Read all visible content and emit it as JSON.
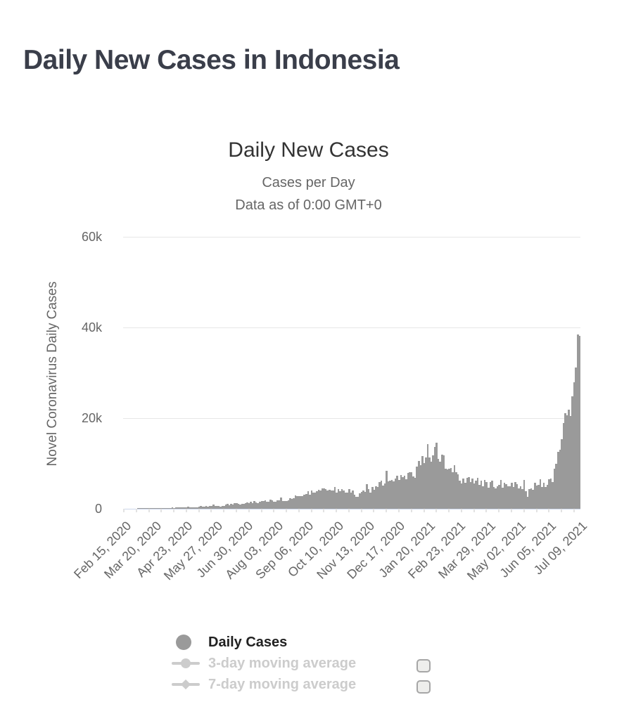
{
  "page": {
    "title": "Daily New Cases in Indonesia"
  },
  "chart": {
    "colors": {
      "bar": "#9a9a9a",
      "gridline": "#e7e7e7",
      "x_axis_line": "#ccd6eb",
      "title_text": "#3a3e4a",
      "axis_text": "#666666",
      "legend_active_text": "#212121",
      "legend_disabled": "#cccccc"
    }
  },
  "chart_data": {
    "type": "bar",
    "title": "Daily New Cases",
    "subtitle": "Cases per Day",
    "note": "Data as of 0:00 GMT+0",
    "ylabel": "Novel Coronavirus Daily Cases",
    "xlabel": "",
    "series_name": "Daily Cases",
    "ylim": [
      0,
      60000
    ],
    "y_ticks": [
      "0",
      "20k",
      "40k",
      "60k"
    ],
    "y_tick_values": [
      0,
      20000,
      40000,
      60000
    ],
    "grid": true,
    "legend_position": "bottom",
    "sample_interval_days": 2,
    "x_tick_labels": [
      "Feb 15, 2020",
      "Mar 20, 2020",
      "Apr 23, 2020",
      "May 27, 2020",
      "Jun 30, 2020",
      "Aug 03, 2020",
      "Sep 06, 2020",
      "Oct 10, 2020",
      "Nov 13, 2020",
      "Dec 17, 2020",
      "Jan 20, 2021",
      "Feb 23, 2021",
      "Mar 29, 2021",
      "May 02, 2021",
      "Jun 05, 2021",
      "Jul 09, 2021"
    ],
    "x_tick_indices": [
      0,
      17,
      34,
      51,
      68,
      85,
      102,
      119,
      136,
      153,
      170,
      187,
      204,
      221,
      238,
      255
    ],
    "values": [
      0,
      0,
      0,
      0,
      0,
      0,
      0,
      0,
      2,
      2,
      8,
      21,
      35,
      60,
      82,
      107,
      81,
      153,
      107,
      109,
      103,
      114,
      129,
      149,
      113,
      196,
      218,
      247,
      218,
      330,
      297,
      282,
      327,
      357,
      283,
      375,
      396,
      347,
      292,
      305,
      367,
      387,
      533,
      568,
      489,
      529,
      693,
      415,
      678,
      634,
      973,
      687,
      557,
      700,
      467,
      609,
      585,
      979,
      1043,
      853,
      1031,
      896,
      1226,
      1178,
      1113,
      879,
      1082,
      1082,
      1293,
      1385,
      1301,
      1607,
      1268,
      1681,
      1462,
      1282,
      1522,
      1671,
      1752,
      1906,
      1579,
      1525,
      2040,
      1904,
      1560,
      1519,
      1922,
      1815,
      2473,
      1687,
      1640,
      1673,
      1902,
      2266,
      2098,
      2306,
      3003,
      2858,
      2719,
      2858,
      2775,
      3075,
      3269,
      3861,
      3046,
      3963,
      3507,
      3635,
      3906,
      4168,
      4071,
      4465,
      4494,
      4284,
      4002,
      4174,
      4007,
      4056,
      4850,
      3622,
      4294,
      3906,
      4267,
      4105,
      3520,
      3602,
      4301,
      3565,
      4070,
      3143,
      2696,
      2618,
      3356,
      3770,
      4065,
      3779,
      5444,
      4360,
      3535,
      4798,
      4265,
      4917,
      4792,
      5828,
      6267,
      5092,
      5533,
      8369,
      6058,
      6189,
      6388,
      6058,
      6689,
      7354,
      6396,
      7514,
      6981,
      7259,
      6528,
      7903,
      8074,
      8072,
      7203,
      6877,
      9321,
      10617,
      9640,
      11557,
      10047,
      11287,
      14224,
      11369,
      10365,
      11788,
      13632,
      14518,
      10994,
      10379,
      11984,
      11749,
      8776,
      8700,
      8844,
      9039,
      8054,
      9687,
      8054,
      7533,
      6208,
      5560,
      6680,
      5712,
      6808,
      6971,
      5826,
      6678,
      5589,
      6177,
      6825,
      5297,
      6279,
      5008,
      6386,
      5937,
      4682,
      5937,
      6142,
      4860,
      4549,
      5041,
      5241,
      6366,
      4627,
      5720,
      5363,
      5041,
      4952,
      5720,
      4798,
      5833,
      5500,
      4512,
      4891,
      4369,
      6327,
      3808,
      2633,
      4295,
      4452,
      4185,
      5797,
      5060,
      5285,
      6565,
      4830,
      5662,
      4824,
      5246,
      6486,
      6594,
      5832,
      8860,
      9944,
      12624,
      12990,
      15308,
      18872,
      21095,
      20574,
      21807,
      20467,
      24836,
      27913,
      31189,
      38391,
      38124
    ]
  },
  "legend": {
    "items": [
      {
        "label": "Daily Cases",
        "marker": "circle",
        "enabled": true,
        "checkbox": false
      },
      {
        "label": "3-day moving average",
        "marker": "line-circle",
        "enabled": false,
        "checkbox": true
      },
      {
        "label": "7-day moving average",
        "marker": "line-diamond",
        "enabled": false,
        "checkbox": true
      }
    ]
  }
}
